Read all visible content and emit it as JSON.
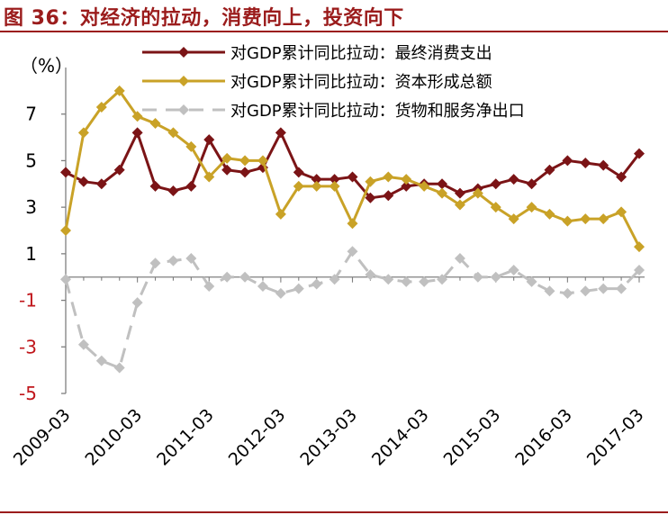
{
  "figure": {
    "title": "图 36：对经济的拉动，消费向上，投资向下"
  },
  "chart_data": {
    "type": "line",
    "ylabel": "（%）",
    "ylim": [
      -5,
      9
    ],
    "yticks": [
      7,
      5,
      3,
      1,
      -1,
      -3,
      -5
    ],
    "xlabels": [
      "2009-03",
      "2010-03",
      "2011-03",
      "2012-03",
      "2013-03",
      "2014-03",
      "2015-03",
      "2016-03",
      "2017-03"
    ],
    "x": [
      "2009-03",
      "2009-06",
      "2009-09",
      "2009-12",
      "2010-03",
      "2010-06",
      "2010-09",
      "2010-12",
      "2011-03",
      "2011-06",
      "2011-09",
      "2011-12",
      "2012-03",
      "2012-06",
      "2012-09",
      "2012-12",
      "2013-03",
      "2013-06",
      "2013-09",
      "2013-12",
      "2014-03",
      "2014-06",
      "2014-09",
      "2014-12",
      "2015-03",
      "2015-06",
      "2015-09",
      "2015-12",
      "2016-03",
      "2016-06",
      "2016-09",
      "2016-12",
      "2017-03"
    ],
    "legend_position": "top-right",
    "series": [
      {
        "name": "对GDP累计同比拉动：最终消费支出",
        "color": "#7b1416",
        "dash": "solid",
        "values": [
          4.5,
          4.1,
          4.0,
          4.6,
          6.2,
          3.9,
          3.7,
          3.9,
          5.9,
          4.6,
          4.5,
          4.7,
          6.2,
          4.5,
          4.2,
          4.2,
          4.3,
          3.4,
          3.5,
          3.9,
          4.0,
          4.0,
          3.6,
          3.8,
          4.0,
          4.2,
          4.0,
          4.6,
          5.0,
          4.9,
          4.8,
          4.3,
          5.3
        ]
      },
      {
        "name": "对GDP累计同比拉动：资本形成总额",
        "color": "#c9a227",
        "dash": "solid",
        "values": [
          2.0,
          6.2,
          7.3,
          8.0,
          6.9,
          6.6,
          6.2,
          5.6,
          4.3,
          5.1,
          5.0,
          5.0,
          2.7,
          3.9,
          3.9,
          3.9,
          2.3,
          4.1,
          4.3,
          4.2,
          3.9,
          3.6,
          3.1,
          3.6,
          3.0,
          2.5,
          3.0,
          2.7,
          2.4,
          2.5,
          2.5,
          2.8,
          1.3
        ]
      },
      {
        "name": "对GDP累计同比拉动：货物和服务净出口",
        "color": "#c0c0c0",
        "dash": "dash",
        "values": [
          -0.1,
          -2.9,
          -3.6,
          -3.9,
          -1.1,
          0.6,
          0.7,
          0.8,
          -0.4,
          0.0,
          0.0,
          -0.4,
          -0.7,
          -0.5,
          -0.3,
          -0.1,
          1.1,
          0.1,
          -0.1,
          -0.2,
          -0.2,
          -0.1,
          0.8,
          0.0,
          0.0,
          0.3,
          -0.2,
          -0.6,
          -0.7,
          -0.6,
          -0.5,
          -0.5,
          0.3
        ]
      }
    ]
  }
}
